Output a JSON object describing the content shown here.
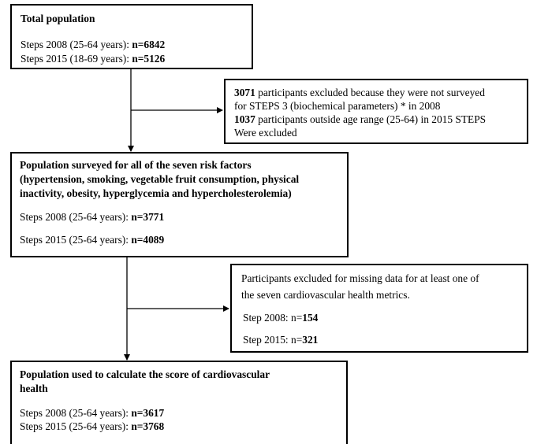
{
  "box1": {
    "title": "Total population",
    "line1_prefix": "Steps 2008 (25-64 years): ",
    "line1_value": "n=6842",
    "line2_prefix": "Steps 2015 (18-69 years): ",
    "line2_value": "n=5126"
  },
  "exclusion1": {
    "line1_bold": "3071",
    "line1_rest": " participants excluded because they were not surveyed",
    "line2": "for STEPS 3 (biochemical parameters) * in 2008",
    "line3_bold": "1037",
    "line3_rest": " participants outside age range (25-64) in 2015 STEPS",
    "line4": "Were excluded"
  },
  "box2": {
    "title_line1": "Population surveyed for all of the seven risk factors",
    "title_line2": "(hypertension, smoking, vegetable fruit consumption, physical",
    "title_line3": "inactivity, obesity, hyperglycemia and hypercholesterolemia)",
    "line1_prefix": "Steps 2008 (25-64 years): ",
    "line1_value": "n=3771",
    "line2_prefix": "Steps 2015 (25-64 years): ",
    "line2_value": "n=4089"
  },
  "exclusion2": {
    "line1": "Participants excluded for missing data for at least one of",
    "line2": "the seven cardiovascular health metrics.",
    "line3_prefix": "Step 2008: n=",
    "line3_value": "154",
    "line4_prefix": "Step 2015: n=",
    "line4_value": "321"
  },
  "box3": {
    "title_line1": "Population used to calculate the score of cardiovascular",
    "title_line2": "health",
    "line1_prefix": "Steps 2008 (25-64 years): ",
    "line1_value": "n=3617",
    "line2_prefix": "Steps 2015 (25-64 years): ",
    "line2_value": "n=3768"
  }
}
